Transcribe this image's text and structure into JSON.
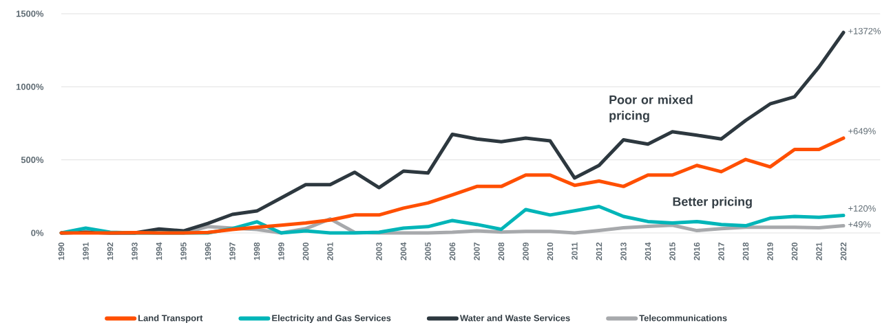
{
  "chart_data": {
    "type": "line",
    "x": [
      1990,
      1991,
      1992,
      1993,
      1994,
      1995,
      1996,
      1997,
      1998,
      1999,
      2000,
      2001,
      2002,
      2003,
      2004,
      2005,
      2006,
      2007,
      2008,
      2009,
      2010,
      2011,
      2012,
      2013,
      2014,
      2015,
      2016,
      2017,
      2018,
      2019,
      2020,
      2021,
      2022
    ],
    "series": [
      {
        "name": "Land Transport",
        "color": "#ff4f00",
        "values": [
          0,
          0,
          0,
          2,
          0,
          0,
          4,
          23,
          39,
          53,
          68,
          88,
          123,
          123,
          170,
          205,
          260,
          318,
          318,
          396,
          396,
          326,
          355,
          318,
          396,
          396,
          462,
          419,
          503,
          452,
          571,
          571,
          649
        ],
        "value_labels": [
          null,
          null,
          null,
          null,
          null,
          null,
          null,
          null,
          null,
          null,
          null,
          null,
          null,
          null,
          null,
          null,
          null,
          null,
          null,
          null,
          null,
          null,
          null,
          null,
          null,
          null,
          null,
          null,
          null,
          null,
          null,
          null,
          "+649%"
        ]
      },
      {
        "name": "Electricity and Gas Services",
        "color": "#00b5b8",
        "values": [
          0,
          33,
          5,
          0,
          0,
          0,
          0,
          30,
          76,
          0,
          14,
          0,
          0,
          5,
          33,
          43,
          85,
          58,
          25,
          160,
          123,
          152,
          181,
          113,
          78,
          68,
          78,
          58,
          49,
          101,
          113,
          107,
          120
        ],
        "value_labels": [
          null,
          null,
          null,
          null,
          null,
          null,
          null,
          null,
          null,
          null,
          null,
          null,
          null,
          null,
          null,
          null,
          null,
          null,
          null,
          null,
          null,
          null,
          null,
          null,
          null,
          null,
          null,
          null,
          null,
          null,
          null,
          null,
          "+120%"
        ]
      },
      {
        "name": "Water and Waste Services",
        "color": "#2d383f",
        "values": [
          0,
          5,
          0,
          0,
          27,
          14,
          65,
          127,
          150,
          240,
          330,
          330,
          415,
          310,
          423,
          410,
          675,
          643,
          624,
          649,
          630,
          376,
          462,
          637,
          608,
          692,
          669,
          643,
          770,
          883,
          932,
          1136,
          1372
        ],
        "value_labels": [
          null,
          null,
          null,
          null,
          null,
          null,
          null,
          null,
          null,
          null,
          null,
          null,
          null,
          null,
          null,
          null,
          null,
          null,
          null,
          null,
          null,
          null,
          null,
          null,
          null,
          null,
          null,
          null,
          null,
          null,
          null,
          null,
          "+1372%"
        ]
      },
      {
        "name": "Telecommunications",
        "color": "#a7a9ac",
        "values": [
          0,
          5,
          0,
          0,
          0,
          0,
          43,
          33,
          23,
          0,
          29,
          96,
          4,
          0,
          0,
          0,
          5,
          14,
          6,
          10,
          10,
          0,
          16,
          35,
          45,
          53,
          16,
          29,
          39,
          39,
          39,
          35,
          49
        ],
        "value_labels": [
          null,
          null,
          null,
          null,
          null,
          null,
          null,
          null,
          null,
          null,
          null,
          null,
          null,
          null,
          null,
          null,
          null,
          null,
          null,
          null,
          null,
          null,
          null,
          null,
          null,
          null,
          null,
          null,
          null,
          null,
          null,
          null,
          "+49%"
        ]
      }
    ],
    "xlim": [
      1990,
      2023.5
    ],
    "xticks": [
      1990,
      1991,
      1992,
      1993,
      1994,
      1995,
      1996,
      1997,
      1998,
      1999,
      2000,
      2001,
      2003,
      2004,
      2005,
      2006,
      2007,
      2008,
      2009,
      2010,
      2011,
      2012,
      2013,
      2014,
      2015,
      2016,
      2017,
      2018,
      2019,
      2020,
      2021,
      2022
    ],
    "ylim": [
      0,
      1500
    ],
    "yticks": [
      {
        "value": 0,
        "label": "0%"
      },
      {
        "value": 500,
        "label": "500%"
      },
      {
        "value": 1000,
        "label": "1000%"
      },
      {
        "value": 1500,
        "label": "1500%"
      }
    ],
    "grid": "y",
    "legend": "bottom",
    "annotations": [
      "Poor or mixed pricing",
      "Better pricing"
    ]
  }
}
